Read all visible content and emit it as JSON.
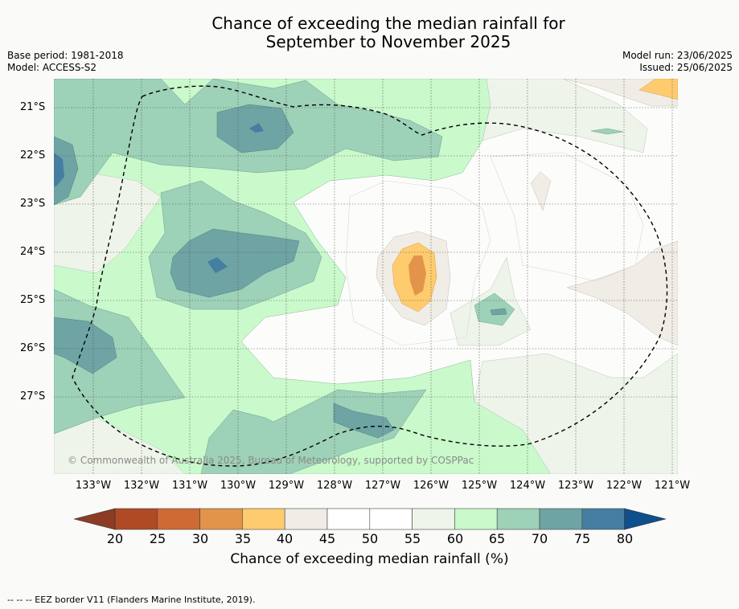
{
  "title_line1": "Chance of exceeding the median rainfall for",
  "title_line2": "September to November 2025",
  "meta": {
    "base_period": "Base period: 1981-2018",
    "model": "Model: ACCESS-S2",
    "model_run": "Model run: 23/06/2025",
    "issued": "Issued: 25/06/2025"
  },
  "latitudes": [
    "21°S",
    "22°S",
    "23°S",
    "24°S",
    "25°S",
    "26°S",
    "27°S"
  ],
  "longitudes": [
    "133°W",
    "132°W",
    "131°W",
    "130°W",
    "129°W",
    "128°W",
    "127°W",
    "126°W",
    "125°W",
    "124°W",
    "123°W",
    "122°W",
    "121°W"
  ],
  "copyright": "© Commonwealth of Australia 2025, Bureau of Meteorology, supported by COSPPac",
  "colorbar": {
    "ticks": [
      "20",
      "25",
      "30",
      "35",
      "40",
      "45",
      "50",
      "55",
      "60",
      "65",
      "70",
      "75",
      "80"
    ],
    "colors": [
      "#b04a24",
      "#cf6a35",
      "#e2944a",
      "#fecb6e",
      "#f0ece6",
      "#ffffff",
      "#ffffff",
      "#eef4ea",
      "#caf9cb",
      "#9dd1b8",
      "#6fa4a4",
      "#457ea0"
    ],
    "under_color": "#8c3c24",
    "over_color": "#0f4f8c",
    "label": "Chance of exceeding median rainfall (%)"
  },
  "footer": "--  --  -- EEZ border V11 (Flanders Marine Institute, 2019)."
}
